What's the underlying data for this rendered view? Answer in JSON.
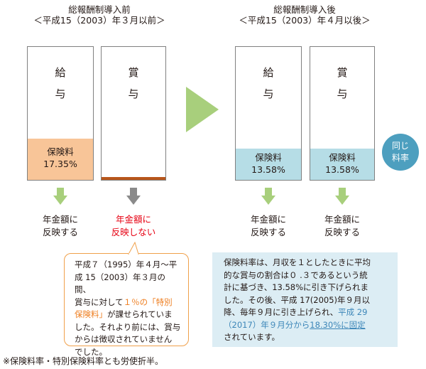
{
  "before": {
    "title": "総報酬制導入前",
    "period": "＜平成15（2003）年３月以前＞",
    "salary_label_1": "給",
    "salary_label_2": "与",
    "bonus_label_1": "賞",
    "bonus_label_2": "与",
    "premium_label": "保険料",
    "premium_rate": "17.35%",
    "salary_note_1": "年金額に",
    "salary_note_2": "反映する",
    "bonus_note_1": "年金額に",
    "bonus_note_2": "反映しない",
    "callout": {
      "line1": "平成７（1995）年４月～平",
      "line2": "成 15（2003）年３月の間、",
      "line3_pre": "賞与に対して",
      "line3_hl": "１％の「特別",
      "line4_hl": "保険料」",
      "line4_post": "が課せられていま",
      "line5": "した。それより前には、賞与",
      "line6": "からは徴収されていません",
      "line7": "でした。"
    }
  },
  "after": {
    "title": "総報酬制導入後",
    "period": "＜平成15（2003）年４月以後＞",
    "salary_label_1": "給",
    "salary_label_2": "与",
    "bonus_label_1": "賞",
    "bonus_label_2": "与",
    "salary_premium_label": "保険料",
    "salary_premium_rate": "13.58%",
    "bonus_premium_label": "保険料",
    "bonus_premium_rate": "13.58%",
    "badge_1": "同じ",
    "badge_2": "料率",
    "salary_note_1": "年金額に",
    "salary_note_2": "反映する",
    "bonus_note_1": "年金額に",
    "bonus_note_2": "反映する",
    "info": {
      "line1": "保険料率は、月収を１としたときに平均",
      "line2": "的な賞与の割合は０ .３であるという統",
      "line3": "計に基づき、13.58%に引き下げられま",
      "line4": "した。その後、平成 17(2005)年９月以",
      "line5_pre": "降、毎年９月に引き上げられ、",
      "line5_hl": "平成 29",
      "line6_hl": "（2017）年９月分から",
      "line6_ul": "18.30%に固定",
      "line7": "されています。"
    }
  },
  "footnote": "※保険料率・特別保険料率とも労使折半。",
  "colors": {
    "premium_before": "#f8c598",
    "premium_after": "#b6dde6",
    "bonus_before_bar": "#b8561b",
    "arrow_green": "#a8cf7c",
    "arrow_gray": "#8a8a8a",
    "callout_border": "#f0a04a",
    "badge": "#4d9fbf",
    "highlight_red": "#e60012",
    "highlight_orange": "#ee7d1e",
    "highlight_blue": "#3c86b8"
  }
}
